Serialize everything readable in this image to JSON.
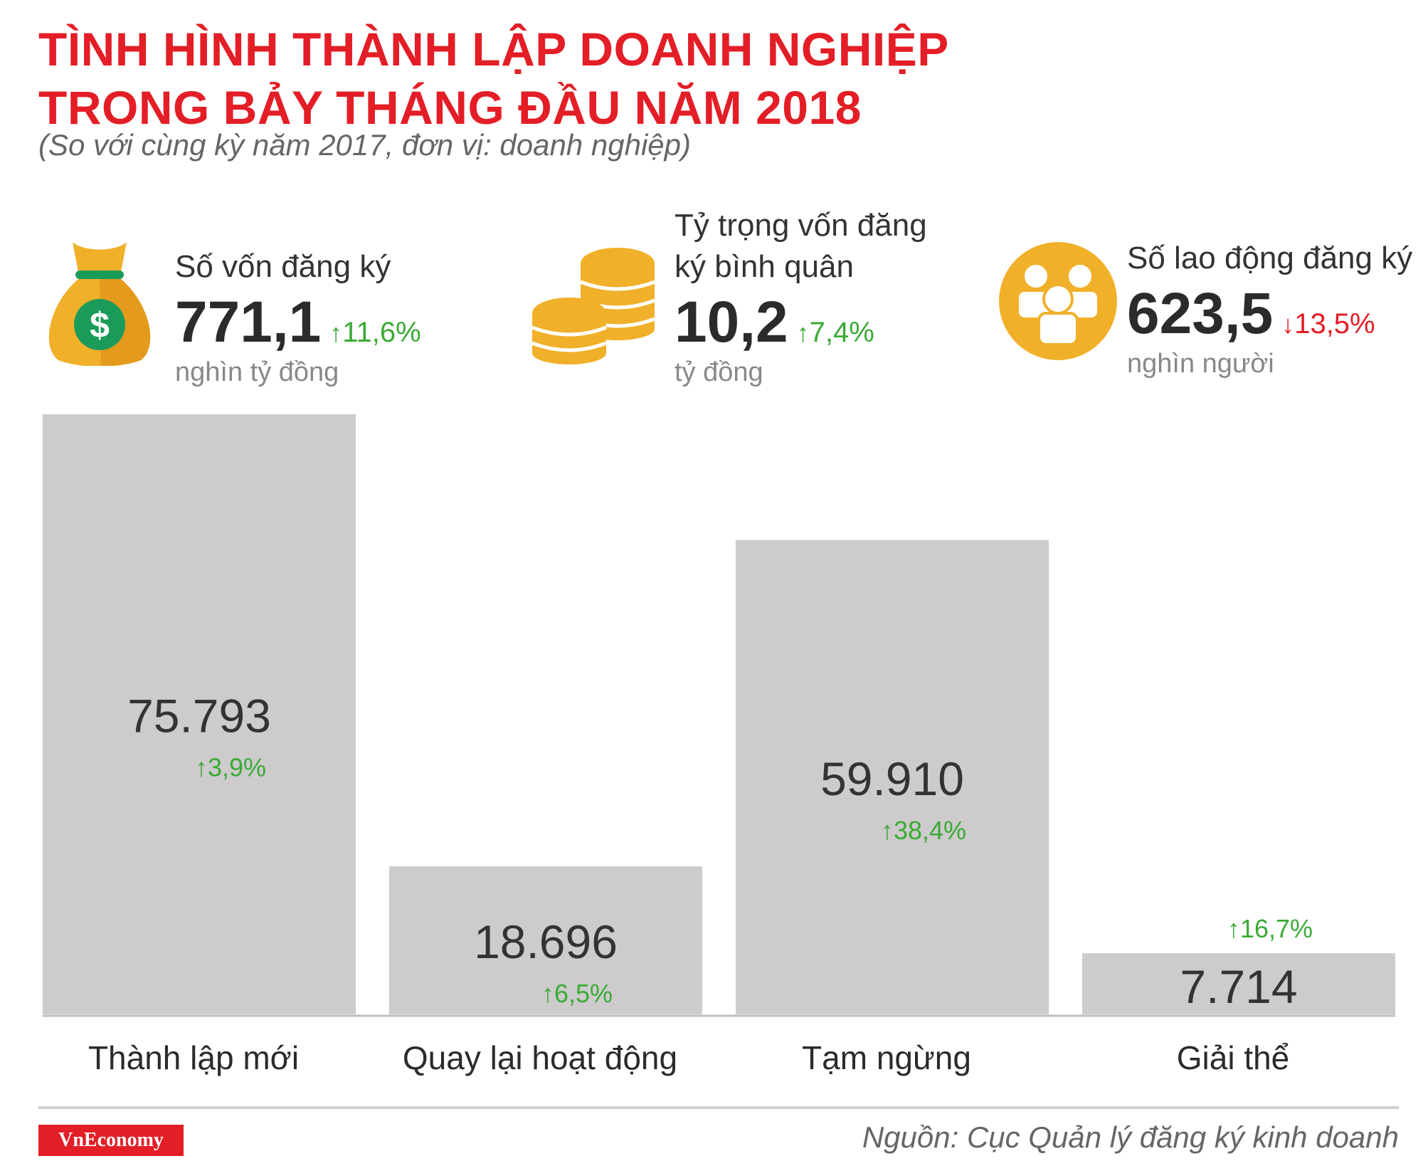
{
  "title": {
    "line1": "TÌNH HÌNH THÀNH LẬP DOANH NGHIỆP",
    "line2": "TRONG BẢY THÁNG ĐẦU NĂM 2018"
  },
  "subtitle": "(So với cùng kỳ năm 2017, đơn vị: doanh nghiệp)",
  "stats": [
    {
      "icon": "money-bag-icon",
      "label_lines": [
        "Số vốn đăng ký"
      ],
      "value": "771,1",
      "arrow": "↑",
      "change": "11,6%",
      "direction": "up",
      "unit": "nghìn tỷ đồng"
    },
    {
      "icon": "coins-icon",
      "label_lines": [
        "Tỷ trọng vốn đăng",
        "ký bình quân"
      ],
      "value": "10,2",
      "arrow": "↑",
      "change": "7,4%",
      "direction": "up",
      "unit": "tỷ đồng"
    },
    {
      "icon": "people-icon",
      "label_lines": [
        "Số lao động đăng ký"
      ],
      "value": "623,5",
      "arrow": "↓",
      "change": "13,5%",
      "direction": "down",
      "unit": "nghìn người"
    }
  ],
  "chart_data": {
    "type": "bar",
    "categories": [
      "Thành lập mới",
      "Quay lại hoạt động",
      "Tạm ngừng",
      "Giải thể"
    ],
    "values": [
      75793,
      18696,
      59910,
      7714
    ],
    "value_labels": [
      "75.793",
      "18.696",
      "59.910",
      "7.714"
    ],
    "changes": [
      "3,9%",
      "6,5%",
      "38,4%",
      "16,7%"
    ],
    "change_arrow": "↑",
    "change_direction": [
      "up",
      "up",
      "up",
      "up"
    ]
  },
  "colors": {
    "title": "#e31e26",
    "bar": "#cdcbcc",
    "up": "#3aaa35",
    "down": "#e31e26",
    "icon_gold": "#f0b02a",
    "icon_green": "#1a9b5a"
  },
  "footer": {
    "brand": "VnEconomy",
    "source": "Nguồn: Cục Quản lý đăng ký kinh doanh"
  }
}
